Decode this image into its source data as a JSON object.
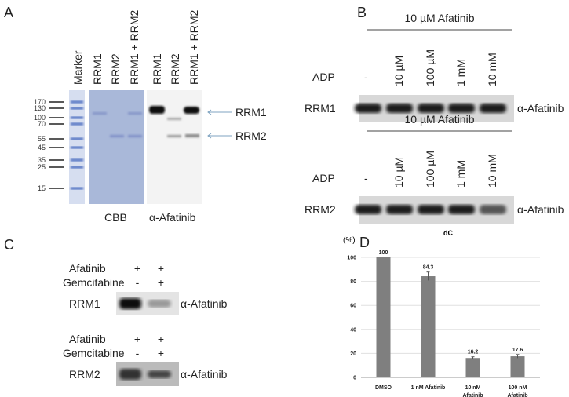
{
  "panels": {
    "A": {
      "label": "A",
      "lanes": [
        "Marker",
        "RRM1",
        "RRM2",
        "RRM1 + RRM2",
        "RRM1",
        "RRM2",
        "RRM1 + RRM2"
      ],
      "mw_markers": [
        "170",
        "130",
        "100",
        "70",
        "55",
        "45",
        "35",
        "25",
        "15"
      ],
      "band_labels": [
        "RRM1",
        "RRM2"
      ],
      "gel_labels": [
        "CBB",
        "α-Afatinib"
      ],
      "colors": {
        "cbb_gel": "#a9b8d9",
        "marker_band": "#4a6cc0",
        "arrow": "#7fa3c0"
      }
    },
    "B": {
      "label": "B",
      "treatment": "10 µM Afatinib",
      "row_label": "ADP",
      "conditions": [
        "-",
        "10 µM",
        "100 µM",
        "1 mM",
        "10 mM"
      ],
      "blots": [
        "RRM1",
        "RRM2"
      ],
      "probe": "α-Afatinib"
    },
    "C": {
      "label": "C",
      "rows": [
        "Afatinib",
        "Gemcitabine"
      ],
      "afatinib": [
        "+",
        "+"
      ],
      "gemcitabine": [
        "-",
        "+"
      ],
      "blots": [
        "RRM1",
        "RRM2"
      ],
      "probe": "α-Afatinib"
    },
    "D": {
      "label": "D"
    }
  },
  "chart_data": {
    "type": "bar",
    "title": "dC",
    "ylabel": "(%)",
    "categories": [
      "DMSO",
      "1 nM Afatinib",
      "10 nM Afatinib",
      "100 nM Afatinib"
    ],
    "category_lines": [
      [
        "DMSO"
      ],
      [
        "1 nM Afatinib"
      ],
      [
        "10 nM",
        "Afatinib"
      ],
      [
        "100 nM",
        "Afatinib"
      ]
    ],
    "values": [
      100,
      84.3,
      16.2,
      17.6
    ],
    "data_labels": [
      "100",
      "84.3",
      "16.2",
      "17.6"
    ],
    "errors": [
      0,
      3.5,
      1,
      1.5
    ],
    "ylim": [
      0,
      100
    ],
    "yticks": [
      "0",
      "20",
      "40",
      "60",
      "80",
      "100"
    ],
    "grid": true,
    "bar_color": "#7f7f7f"
  }
}
